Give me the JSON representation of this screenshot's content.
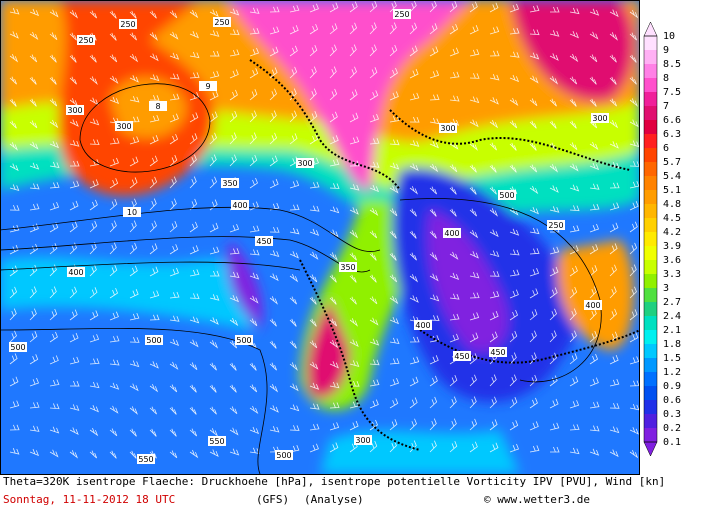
{
  "map": {
    "contour_labels": [
      "250",
      "250",
      "250",
      "250",
      "300",
      "300",
      "300",
      "300",
      "350",
      "350",
      "400",
      "400",
      "400",
      "450",
      "450",
      "500",
      "500",
      "500",
      "550",
      "550",
      "300",
      "400",
      "450",
      "500",
      "250",
      "300",
      "400",
      "500",
      "8",
      "9",
      "10"
    ]
  },
  "legend": {
    "labels": [
      "10",
      "9",
      "8.5",
      "8",
      "7.5",
      "7",
      "6.6",
      "6.3",
      "6",
      "5.7",
      "5.4",
      "5.1",
      "4.8",
      "4.5",
      "4.2",
      "3.9",
      "3.6",
      "3.3",
      "3",
      "2.7",
      "2.4",
      "2.1",
      "1.8",
      "1.5",
      "1.2",
      "0.9",
      "0.6",
      "0.3",
      "0.2",
      "0.1"
    ],
    "colors": [
      "#ffe0ff",
      "#ffb0f4",
      "#ff80e6",
      "#ff50cc",
      "#f0209a",
      "#e01070",
      "#e00040",
      "#ff2020",
      "#ff4400",
      "#ff6600",
      "#ff8200",
      "#ff9c00",
      "#ffb600",
      "#ffd000",
      "#ffea00",
      "#f0ff00",
      "#c8ff00",
      "#90f000",
      "#50e040",
      "#20d080",
      "#00e0c0",
      "#00f0f0",
      "#00c8ff",
      "#0098ff",
      "#0070ff",
      "#0050f0",
      "#2030e8",
      "#5020e0",
      "#8020e0"
    ]
  },
  "footer": {
    "description": "Theta=320K isentrope Flaeche: Druckhoehe [hPa], isentrope potentielle Vorticity IPV [PVU], Wind [kn]",
    "date": "Sonntag, 11-11-2012  18 UTC",
    "model": "(GFS)",
    "analysis": "(Analyse)",
    "copyright": "© www.wetter3.de"
  }
}
